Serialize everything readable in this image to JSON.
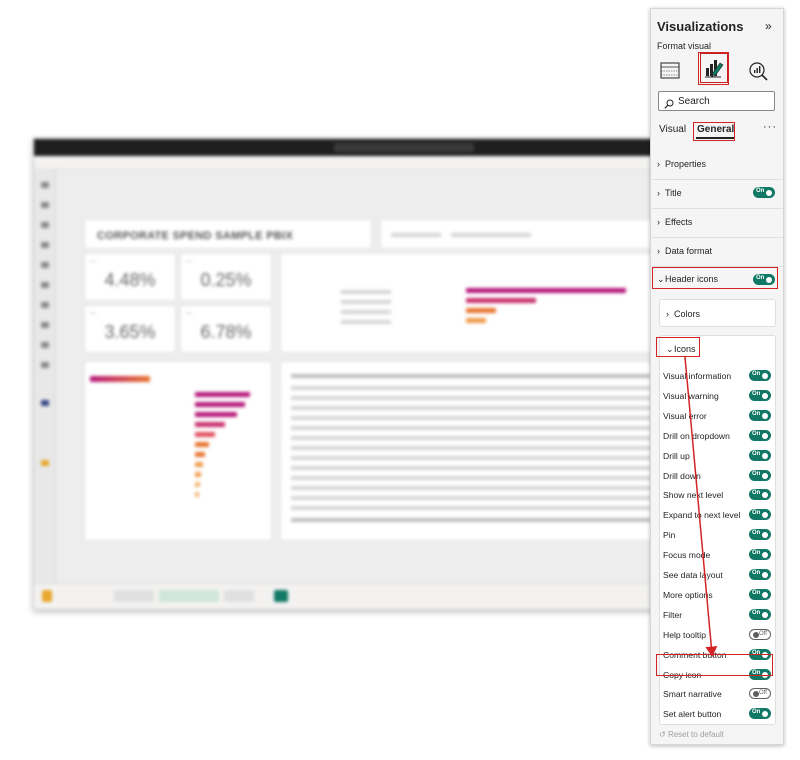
{
  "report": {
    "title": "CORPORATE SPEND SAMPLE PBIX",
    "kpis": [
      "4.48%",
      "0.25%",
      "3.65%",
      "6.78%"
    ]
  },
  "pane": {
    "title": "Visualizations",
    "collapse_glyph": "»",
    "subtitle": "Format visual",
    "icons": [
      "build-visual-icon",
      "format-visual-icon",
      "analytics-icon"
    ],
    "search_placeholder": "Search",
    "tabs": [
      "Visual",
      "General"
    ],
    "more_glyph": "···",
    "sections": {
      "properties": "Properties",
      "title": "Title",
      "effects": "Effects",
      "data_format": "Data format",
      "header_icons": "Header icons"
    },
    "colors_label": "Colors",
    "icons_label": "Icons",
    "icon_rows": [
      {
        "label": "Visual information",
        "state": "On"
      },
      {
        "label": "Visual warning",
        "state": "On"
      },
      {
        "label": "Visual error",
        "state": "On"
      },
      {
        "label": "Drill on dropdown",
        "state": "On"
      },
      {
        "label": "Drill up",
        "state": "On"
      },
      {
        "label": "Drill down",
        "state": "On"
      },
      {
        "label": "Show next level",
        "state": "On"
      },
      {
        "label": "Expand to next level",
        "state": "On"
      },
      {
        "label": "Pin",
        "state": "On"
      },
      {
        "label": "Focus mode",
        "state": "On"
      },
      {
        "label": "See data layout",
        "state": "On"
      },
      {
        "label": "More options",
        "state": "On"
      },
      {
        "label": "Filter",
        "state": "On"
      },
      {
        "label": "Help tooltip",
        "state": "Off"
      },
      {
        "label": "Comment button",
        "state": "On"
      },
      {
        "label": "Copy icon",
        "state": "On"
      },
      {
        "label": "Smart narrative",
        "state": "Off"
      },
      {
        "label": "Set alert button",
        "state": "On"
      }
    ],
    "toggle_on": "On",
    "reset_label": "Reset to default"
  },
  "colors": {
    "accent_toggle": "#117865",
    "highlight": "#d32424",
    "bar_magenta": "#b5177a",
    "bar_orange": "#e8742f"
  }
}
